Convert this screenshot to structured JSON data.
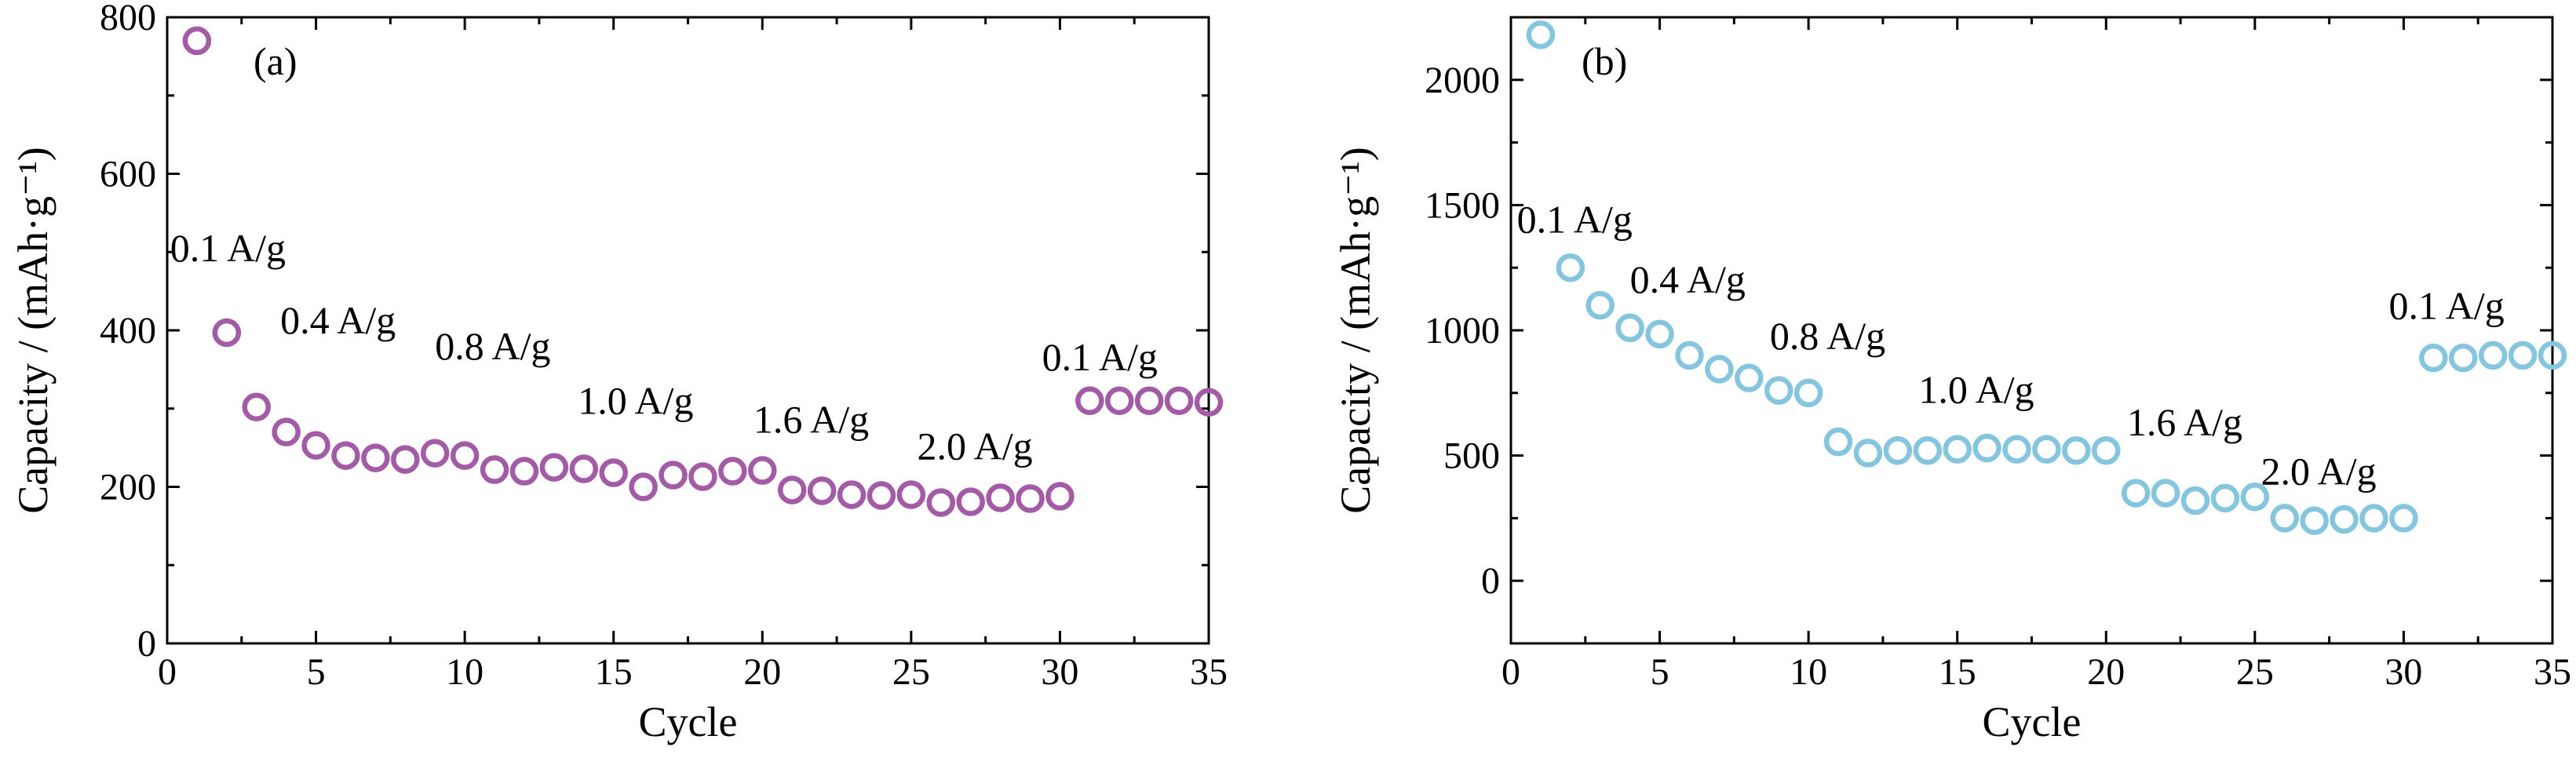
{
  "chart_data": [
    {
      "panel_label": "(a)",
      "type": "scatter",
      "xlabel": "Cycle",
      "ylabel": "Capacity / (mAh·g⁻¹)",
      "xlim": [
        0,
        35
      ],
      "ylim": [
        0,
        800
      ],
      "xticks": [
        0,
        5,
        10,
        15,
        20,
        25,
        30,
        35
      ],
      "yticks": [
        0,
        200,
        400,
        600,
        800
      ],
      "grid": false,
      "marker_color": "#a35ba6",
      "series": [
        {
          "x": [
            1,
            2,
            3,
            4,
            5,
            6,
            7,
            8,
            9,
            10,
            11,
            12,
            13,
            14,
            15,
            16,
            17,
            18,
            19,
            20,
            21,
            22,
            23,
            24,
            25,
            26,
            27,
            28,
            29,
            30,
            31,
            32,
            33,
            34,
            35
          ],
          "values": [
            770,
            397,
            302,
            270,
            253,
            240,
            237,
            235,
            243,
            240,
            222,
            220,
            225,
            223,
            218,
            200,
            215,
            213,
            220,
            221,
            196,
            195,
            190,
            189,
            190,
            180,
            181,
            186,
            185,
            188,
            310,
            310,
            310,
            310,
            308
          ]
        }
      ],
      "annotations": [
        {
          "text": "0.1 A/g",
          "x": 0.1,
          "y": 488
        },
        {
          "text": "0.4 A/g",
          "x": 3.8,
          "y": 396
        },
        {
          "text": "0.8 A/g",
          "x": 9.0,
          "y": 363
        },
        {
          "text": "1.0 A/g",
          "x": 13.8,
          "y": 293
        },
        {
          "text": "1.6 A/g",
          "x": 19.7,
          "y": 269
        },
        {
          "text": "2.0 A/g",
          "x": 25.2,
          "y": 235
        },
        {
          "text": "0.1 A/g",
          "x": 29.4,
          "y": 349
        }
      ]
    },
    {
      "panel_label": "(b)",
      "type": "scatter",
      "xlabel": "Cycle",
      "ylabel": "Capacity / (mAh·g⁻¹)",
      "xlim": [
        0,
        35
      ],
      "ylim": [
        -250,
        2250
      ],
      "xticks": [
        0,
        5,
        10,
        15,
        20,
        25,
        30,
        35
      ],
      "yticks": [
        0,
        500,
        1000,
        1500,
        2000
      ],
      "grid": false,
      "marker_color": "#85c6de",
      "series": [
        {
          "x": [
            1,
            2,
            3,
            4,
            5,
            6,
            7,
            8,
            9,
            10,
            11,
            12,
            13,
            14,
            15,
            16,
            17,
            18,
            19,
            20,
            21,
            22,
            23,
            24,
            25,
            26,
            27,
            28,
            29,
            30,
            31,
            32,
            33,
            34,
            35
          ],
          "values": [
            2180,
            1250,
            1100,
            1010,
            985,
            900,
            845,
            810,
            760,
            750,
            555,
            510,
            520,
            520,
            525,
            530,
            525,
            525,
            520,
            520,
            350,
            350,
            320,
            330,
            335,
            250,
            240,
            245,
            250,
            250,
            890,
            890,
            900,
            900,
            900
          ]
        }
      ],
      "annotations": [
        {
          "text": "0.1 A/g",
          "x": 0.2,
          "y": 1390
        },
        {
          "text": "0.4 A/g",
          "x": 4.0,
          "y": 1150
        },
        {
          "text": "0.8 A/g",
          "x": 8.7,
          "y": 925
        },
        {
          "text": "1.0 A/g",
          "x": 13.7,
          "y": 710
        },
        {
          "text": "1.6 A/g",
          "x": 20.7,
          "y": 580
        },
        {
          "text": "2.0 A/g",
          "x": 25.2,
          "y": 385
        },
        {
          "text": "0.1 A/g",
          "x": 29.5,
          "y": 1045
        }
      ]
    }
  ]
}
